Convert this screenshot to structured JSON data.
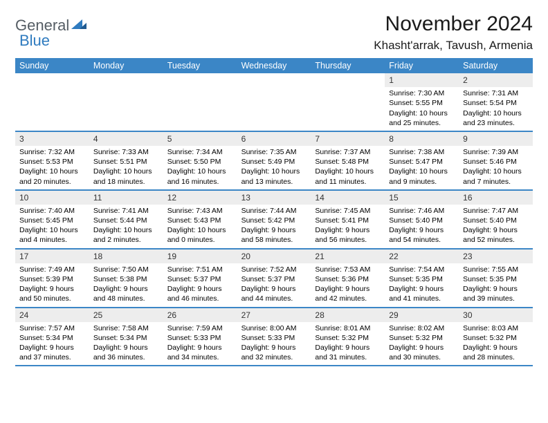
{
  "logo": {
    "text1": "General",
    "text2": "Blue"
  },
  "title": "November 2024",
  "subtitle": "Khasht'arrak, Tavush, Armenia",
  "colors": {
    "header_bg": "#3b86c6",
    "header_text": "#ffffff",
    "daynum_bg": "#ededed",
    "border": "#3b86c6",
    "logo_gray": "#555d64",
    "logo_blue": "#2f7bbf",
    "page_bg": "#ffffff",
    "text": "#000000"
  },
  "fonts": {
    "title_size": 30,
    "subtitle_size": 17,
    "weekday_size": 12.5,
    "daynum_size": 12,
    "body_size": 10.5
  },
  "weekdays": [
    "Sunday",
    "Monday",
    "Tuesday",
    "Wednesday",
    "Thursday",
    "Friday",
    "Saturday"
  ],
  "weeks": [
    [
      null,
      null,
      null,
      null,
      null,
      {
        "d": "1",
        "sr": "Sunrise: 7:30 AM",
        "ss": "Sunset: 5:55 PM",
        "dl": "Daylight: 10 hours and 25 minutes."
      },
      {
        "d": "2",
        "sr": "Sunrise: 7:31 AM",
        "ss": "Sunset: 5:54 PM",
        "dl": "Daylight: 10 hours and 23 minutes."
      }
    ],
    [
      {
        "d": "3",
        "sr": "Sunrise: 7:32 AM",
        "ss": "Sunset: 5:53 PM",
        "dl": "Daylight: 10 hours and 20 minutes."
      },
      {
        "d": "4",
        "sr": "Sunrise: 7:33 AM",
        "ss": "Sunset: 5:51 PM",
        "dl": "Daylight: 10 hours and 18 minutes."
      },
      {
        "d": "5",
        "sr": "Sunrise: 7:34 AM",
        "ss": "Sunset: 5:50 PM",
        "dl": "Daylight: 10 hours and 16 minutes."
      },
      {
        "d": "6",
        "sr": "Sunrise: 7:35 AM",
        "ss": "Sunset: 5:49 PM",
        "dl": "Daylight: 10 hours and 13 minutes."
      },
      {
        "d": "7",
        "sr": "Sunrise: 7:37 AM",
        "ss": "Sunset: 5:48 PM",
        "dl": "Daylight: 10 hours and 11 minutes."
      },
      {
        "d": "8",
        "sr": "Sunrise: 7:38 AM",
        "ss": "Sunset: 5:47 PM",
        "dl": "Daylight: 10 hours and 9 minutes."
      },
      {
        "d": "9",
        "sr": "Sunrise: 7:39 AM",
        "ss": "Sunset: 5:46 PM",
        "dl": "Daylight: 10 hours and 7 minutes."
      }
    ],
    [
      {
        "d": "10",
        "sr": "Sunrise: 7:40 AM",
        "ss": "Sunset: 5:45 PM",
        "dl": "Daylight: 10 hours and 4 minutes."
      },
      {
        "d": "11",
        "sr": "Sunrise: 7:41 AM",
        "ss": "Sunset: 5:44 PM",
        "dl": "Daylight: 10 hours and 2 minutes."
      },
      {
        "d": "12",
        "sr": "Sunrise: 7:43 AM",
        "ss": "Sunset: 5:43 PM",
        "dl": "Daylight: 10 hours and 0 minutes."
      },
      {
        "d": "13",
        "sr": "Sunrise: 7:44 AM",
        "ss": "Sunset: 5:42 PM",
        "dl": "Daylight: 9 hours and 58 minutes."
      },
      {
        "d": "14",
        "sr": "Sunrise: 7:45 AM",
        "ss": "Sunset: 5:41 PM",
        "dl": "Daylight: 9 hours and 56 minutes."
      },
      {
        "d": "15",
        "sr": "Sunrise: 7:46 AM",
        "ss": "Sunset: 5:40 PM",
        "dl": "Daylight: 9 hours and 54 minutes."
      },
      {
        "d": "16",
        "sr": "Sunrise: 7:47 AM",
        "ss": "Sunset: 5:40 PM",
        "dl": "Daylight: 9 hours and 52 minutes."
      }
    ],
    [
      {
        "d": "17",
        "sr": "Sunrise: 7:49 AM",
        "ss": "Sunset: 5:39 PM",
        "dl": "Daylight: 9 hours and 50 minutes."
      },
      {
        "d": "18",
        "sr": "Sunrise: 7:50 AM",
        "ss": "Sunset: 5:38 PM",
        "dl": "Daylight: 9 hours and 48 minutes."
      },
      {
        "d": "19",
        "sr": "Sunrise: 7:51 AM",
        "ss": "Sunset: 5:37 PM",
        "dl": "Daylight: 9 hours and 46 minutes."
      },
      {
        "d": "20",
        "sr": "Sunrise: 7:52 AM",
        "ss": "Sunset: 5:37 PM",
        "dl": "Daylight: 9 hours and 44 minutes."
      },
      {
        "d": "21",
        "sr": "Sunrise: 7:53 AM",
        "ss": "Sunset: 5:36 PM",
        "dl": "Daylight: 9 hours and 42 minutes."
      },
      {
        "d": "22",
        "sr": "Sunrise: 7:54 AM",
        "ss": "Sunset: 5:35 PM",
        "dl": "Daylight: 9 hours and 41 minutes."
      },
      {
        "d": "23",
        "sr": "Sunrise: 7:55 AM",
        "ss": "Sunset: 5:35 PM",
        "dl": "Daylight: 9 hours and 39 minutes."
      }
    ],
    [
      {
        "d": "24",
        "sr": "Sunrise: 7:57 AM",
        "ss": "Sunset: 5:34 PM",
        "dl": "Daylight: 9 hours and 37 minutes."
      },
      {
        "d": "25",
        "sr": "Sunrise: 7:58 AM",
        "ss": "Sunset: 5:34 PM",
        "dl": "Daylight: 9 hours and 36 minutes."
      },
      {
        "d": "26",
        "sr": "Sunrise: 7:59 AM",
        "ss": "Sunset: 5:33 PM",
        "dl": "Daylight: 9 hours and 34 minutes."
      },
      {
        "d": "27",
        "sr": "Sunrise: 8:00 AM",
        "ss": "Sunset: 5:33 PM",
        "dl": "Daylight: 9 hours and 32 minutes."
      },
      {
        "d": "28",
        "sr": "Sunrise: 8:01 AM",
        "ss": "Sunset: 5:32 PM",
        "dl": "Daylight: 9 hours and 31 minutes."
      },
      {
        "d": "29",
        "sr": "Sunrise: 8:02 AM",
        "ss": "Sunset: 5:32 PM",
        "dl": "Daylight: 9 hours and 30 minutes."
      },
      {
        "d": "30",
        "sr": "Sunrise: 8:03 AM",
        "ss": "Sunset: 5:32 PM",
        "dl": "Daylight: 9 hours and 28 minutes."
      }
    ]
  ]
}
